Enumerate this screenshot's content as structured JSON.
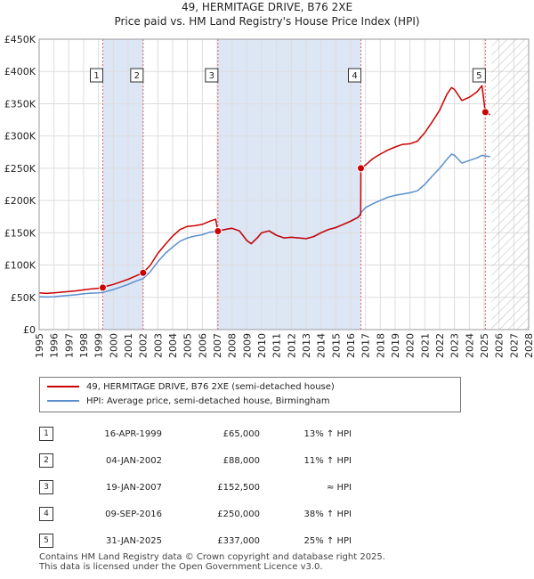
{
  "chart_data": {
    "type": "line",
    "title": "49, HERMITAGE DRIVE, B76 2XE",
    "subtitle": "Price paid vs. HM Land Registry's House Price Index (HPI)",
    "xlim": [
      1995,
      2028
    ],
    "ylim": [
      0,
      450000
    ],
    "x_ticks": [
      "1995",
      "1996",
      "1997",
      "1998",
      "1999",
      "2000",
      "2001",
      "2002",
      "2003",
      "2004",
      "2005",
      "2006",
      "2007",
      "2008",
      "2009",
      "2010",
      "2011",
      "2012",
      "2013",
      "2014",
      "2015",
      "2016",
      "2017",
      "2018",
      "2019",
      "2020",
      "2021",
      "2022",
      "2023",
      "2024",
      "2025",
      "2026",
      "2027",
      "2028"
    ],
    "y_ticks": [
      {
        "value": 0,
        "label": "£0"
      },
      {
        "value": 50000,
        "label": "£50K"
      },
      {
        "value": 100000,
        "label": "£100K"
      },
      {
        "value": 150000,
        "label": "£150K"
      },
      {
        "value": 200000,
        "label": "£200K"
      },
      {
        "value": 250000,
        "label": "£250K"
      },
      {
        "value": 300000,
        "label": "£300K"
      },
      {
        "value": 350000,
        "label": "£350K"
      },
      {
        "value": 400000,
        "label": "£400K"
      },
      {
        "value": 450000,
        "label": "£450K"
      }
    ],
    "future_start": 2025.5,
    "series": [
      {
        "name": "49, HERMITAGE DRIVE, B76 2XE (semi-detached house)",
        "color": "#cc0000",
        "points": [
          [
            1995.0,
            57000
          ],
          [
            1995.5,
            56000
          ],
          [
            1996.0,
            57000
          ],
          [
            1996.5,
            58000
          ],
          [
            1997.0,
            59000
          ],
          [
            1997.5,
            60000
          ],
          [
            1998.0,
            61500
          ],
          [
            1998.5,
            63000
          ],
          [
            1999.0,
            64000
          ],
          [
            1999.29,
            65000
          ],
          [
            1999.5,
            67000
          ],
          [
            2000.0,
            70000
          ],
          [
            2000.5,
            74000
          ],
          [
            2001.0,
            78000
          ],
          [
            2001.5,
            83000
          ],
          [
            2002.01,
            88000
          ],
          [
            2002.5,
            100000
          ],
          [
            2003.0,
            118000
          ],
          [
            2003.5,
            132000
          ],
          [
            2004.0,
            145000
          ],
          [
            2004.5,
            155000
          ],
          [
            2005.0,
            160000
          ],
          [
            2005.5,
            161000
          ],
          [
            2006.0,
            163000
          ],
          [
            2006.5,
            168000
          ],
          [
            2006.9,
            171000
          ],
          [
            2007.05,
            152500
          ],
          [
            2007.5,
            155000
          ],
          [
            2008.0,
            157000
          ],
          [
            2008.5,
            153000
          ],
          [
            2009.0,
            138000
          ],
          [
            2009.3,
            133000
          ],
          [
            2009.7,
            142000
          ],
          [
            2010.0,
            150000
          ],
          [
            2010.5,
            153000
          ],
          [
            2011.0,
            146000
          ],
          [
            2011.5,
            142000
          ],
          [
            2012.0,
            143000
          ],
          [
            2012.5,
            142000
          ],
          [
            2013.0,
            141000
          ],
          [
            2013.5,
            144000
          ],
          [
            2014.0,
            150000
          ],
          [
            2014.5,
            155000
          ],
          [
            2015.0,
            158000
          ],
          [
            2015.5,
            163000
          ],
          [
            2016.0,
            168000
          ],
          [
            2016.5,
            174000
          ],
          [
            2016.68,
            178000
          ],
          [
            2016.69,
            250000
          ],
          [
            2017.0,
            255000
          ],
          [
            2017.5,
            265000
          ],
          [
            2018.0,
            272000
          ],
          [
            2018.5,
            278000
          ],
          [
            2019.0,
            283000
          ],
          [
            2019.5,
            287000
          ],
          [
            2020.0,
            288000
          ],
          [
            2020.5,
            292000
          ],
          [
            2021.0,
            305000
          ],
          [
            2021.5,
            322000
          ],
          [
            2022.0,
            340000
          ],
          [
            2022.5,
            365000
          ],
          [
            2022.8,
            375000
          ],
          [
            2023.0,
            372000
          ],
          [
            2023.5,
            355000
          ],
          [
            2024.0,
            360000
          ],
          [
            2024.5,
            368000
          ],
          [
            2024.85,
            378000
          ],
          [
            2025.08,
            337000
          ],
          [
            2025.4,
            333000
          ]
        ]
      },
      {
        "name": "HPI: Average price, semi-detached house, Birmingham",
        "color": "#5b8fcf",
        "points": [
          [
            1995.0,
            51000
          ],
          [
            1995.5,
            50500
          ],
          [
            1996.0,
            51000
          ],
          [
            1996.5,
            52000
          ],
          [
            1997.0,
            53000
          ],
          [
            1997.5,
            54000
          ],
          [
            1998.0,
            55500
          ],
          [
            1998.5,
            56500
          ],
          [
            1999.0,
            57000
          ],
          [
            1999.29,
            57500
          ],
          [
            1999.5,
            59000
          ],
          [
            2000.0,
            62000
          ],
          [
            2000.5,
            66000
          ],
          [
            2001.0,
            70000
          ],
          [
            2001.5,
            75000
          ],
          [
            2002.01,
            79000
          ],
          [
            2002.5,
            90000
          ],
          [
            2003.0,
            105000
          ],
          [
            2003.5,
            118000
          ],
          [
            2004.0,
            128000
          ],
          [
            2004.5,
            137000
          ],
          [
            2005.0,
            142000
          ],
          [
            2005.5,
            145000
          ],
          [
            2006.0,
            147000
          ],
          [
            2006.5,
            151000
          ],
          [
            2007.05,
            152500
          ],
          [
            2007.5,
            155000
          ],
          [
            2008.0,
            157000
          ],
          [
            2008.5,
            153000
          ],
          [
            2009.0,
            138000
          ],
          [
            2009.3,
            133000
          ],
          [
            2009.7,
            142000
          ],
          [
            2010.0,
            150000
          ],
          [
            2010.5,
            153000
          ],
          [
            2011.0,
            146000
          ],
          [
            2011.5,
            142000
          ],
          [
            2012.0,
            143000
          ],
          [
            2012.5,
            142000
          ],
          [
            2013.0,
            141000
          ],
          [
            2013.5,
            144000
          ],
          [
            2014.0,
            150000
          ],
          [
            2014.5,
            155000
          ],
          [
            2015.0,
            158000
          ],
          [
            2015.5,
            163000
          ],
          [
            2016.0,
            168000
          ],
          [
            2016.5,
            174000
          ],
          [
            2016.69,
            181000
          ],
          [
            2017.0,
            189000
          ],
          [
            2017.5,
            195000
          ],
          [
            2018.0,
            200000
          ],
          [
            2018.5,
            205000
          ],
          [
            2019.0,
            208000
          ],
          [
            2019.5,
            210000
          ],
          [
            2020.0,
            212000
          ],
          [
            2020.5,
            215000
          ],
          [
            2021.0,
            225000
          ],
          [
            2021.5,
            238000
          ],
          [
            2022.0,
            250000
          ],
          [
            2022.5,
            264000
          ],
          [
            2022.8,
            272000
          ],
          [
            2023.0,
            270000
          ],
          [
            2023.5,
            258000
          ],
          [
            2024.0,
            262000
          ],
          [
            2024.5,
            266000
          ],
          [
            2024.85,
            270000
          ],
          [
            2025.08,
            269000
          ],
          [
            2025.4,
            268000
          ]
        ]
      }
    ],
    "sales": [
      {
        "n": "1",
        "x": 1999.29,
        "y": 65000
      },
      {
        "n": "2",
        "x": 2002.01,
        "y": 88000
      },
      {
        "n": "3",
        "x": 2007.05,
        "y": 152500
      },
      {
        "n": "4",
        "x": 2016.69,
        "y": 250000
      },
      {
        "n": "5",
        "x": 2025.08,
        "y": 337000
      }
    ],
    "shaded_periods": [
      [
        1999.29,
        2002.01
      ],
      [
        2007.05,
        2016.69
      ]
    ]
  },
  "legend": {
    "property": "49, HERMITAGE DRIVE, B76 2XE (semi-detached house)",
    "hpi": "HPI: Average price, semi-detached house, Birmingham"
  },
  "transactions": [
    {
      "n": "1",
      "date": "16-APR-1999",
      "price": "£65,000",
      "hpi": "13% ↑ HPI"
    },
    {
      "n": "2",
      "date": "04-JAN-2002",
      "price": "£88,000",
      "hpi": "11% ↑ HPI"
    },
    {
      "n": "3",
      "date": "19-JAN-2007",
      "price": "£152,500",
      "hpi": "≈ HPI"
    },
    {
      "n": "4",
      "date": "09-SEP-2016",
      "price": "£250,000",
      "hpi": "38% ↑ HPI"
    },
    {
      "n": "5",
      "date": "31-JAN-2025",
      "price": "£337,000",
      "hpi": "25% ↑ HPI"
    }
  ],
  "footer": {
    "line1": "Contains HM Land Registry data © Crown copyright and database right 2025.",
    "line2": "This data is licensed under the Open Government Licence v3.0."
  }
}
